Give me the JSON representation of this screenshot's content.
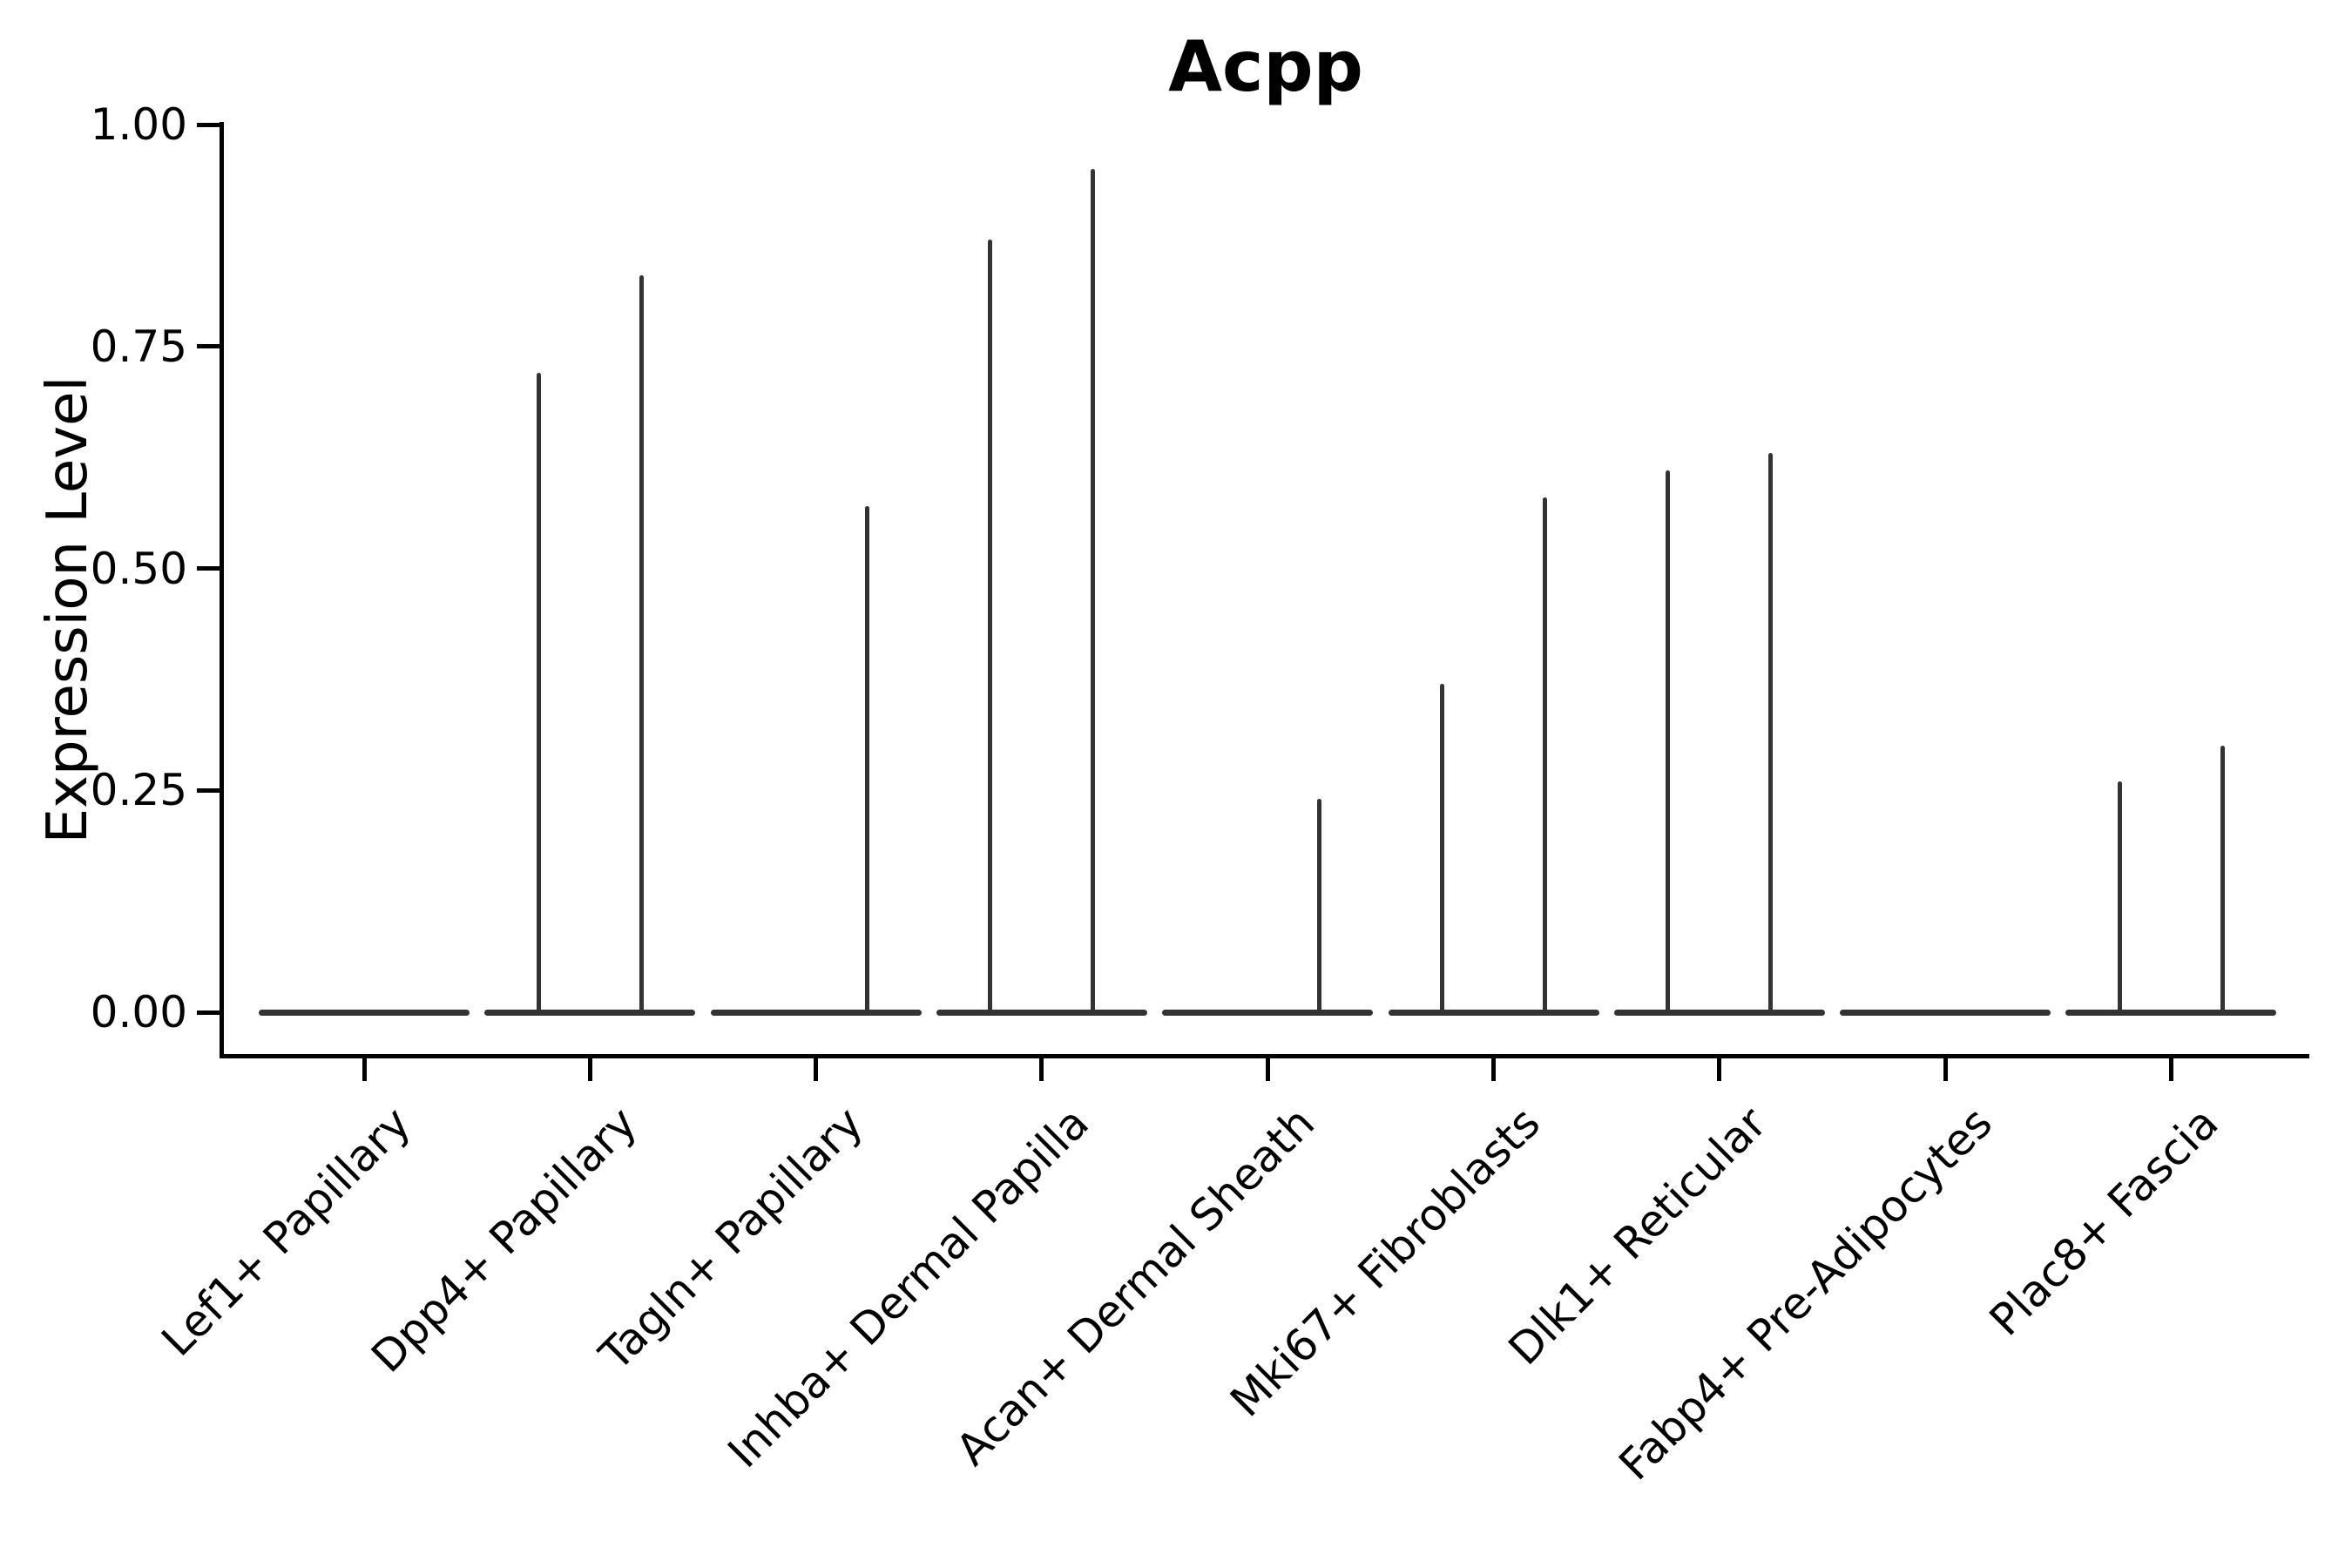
{
  "title": "Acpp",
  "y_axis": {
    "label": "Expression Level"
  },
  "chart_data": {
    "type": "violin",
    "title": "Acpp",
    "xlabel": "",
    "ylabel": "Expression Level",
    "ylim": [
      0,
      1
    ],
    "grid": false,
    "legend": false,
    "violin_color": "#333333",
    "axis_color": "#000000",
    "yticks": [
      {
        "value": 1.0,
        "label": "1.00"
      },
      {
        "value": 0.75,
        "label": "0.75"
      },
      {
        "value": 0.5,
        "label": "0.50"
      },
      {
        "value": 0.25,
        "label": "0.25"
      },
      {
        "value": 0.0,
        "label": "0.00"
      }
    ],
    "categories": [
      "Lef1+ Papillary",
      "Dpp4+ Papillary",
      "Tagln+ Papillary",
      "Inhba+ Dermal Papilla",
      "Acan+ Dermal Sheath",
      "Mki67+ Fibroblasts",
      "Dlk1+ Reticular",
      "Fabp4+ Pre-Adipocytes",
      "Plac8+ Fascia"
    ],
    "series": [
      {
        "category": "Lef1+ Papillary",
        "base_value": 0,
        "spikes": []
      },
      {
        "category": "Dpp4+ Papillary",
        "base_value": 0,
        "spikes": [
          {
            "slot": "left",
            "peak": 0.72
          },
          {
            "slot": "right",
            "peak": 0.83
          }
        ]
      },
      {
        "category": "Tagln+ Papillary",
        "base_value": 0,
        "spikes": [
          {
            "slot": "right",
            "peak": 0.57
          }
        ]
      },
      {
        "category": "Inhba+ Dermal Papilla",
        "base_value": 0,
        "spikes": [
          {
            "slot": "left",
            "peak": 0.87
          },
          {
            "slot": "right",
            "peak": 0.95
          }
        ]
      },
      {
        "category": "Acan+ Dermal Sheath",
        "base_value": 0,
        "spikes": [
          {
            "slot": "right",
            "peak": 0.24
          }
        ]
      },
      {
        "category": "Mki67+ Fibroblasts",
        "base_value": 0,
        "spikes": [
          {
            "slot": "left",
            "peak": 0.37
          },
          {
            "slot": "right",
            "peak": 0.58
          }
        ]
      },
      {
        "category": "Dlk1+ Reticular",
        "base_value": 0,
        "spikes": [
          {
            "slot": "left",
            "peak": 0.61
          },
          {
            "slot": "right",
            "peak": 0.63
          }
        ]
      },
      {
        "category": "Fabp4+ Pre-Adipocytes",
        "base_value": 0,
        "spikes": []
      },
      {
        "category": "Plac8+ Fascia",
        "base_value": 0,
        "spikes": [
          {
            "slot": "left",
            "peak": 0.26
          },
          {
            "slot": "right",
            "peak": 0.3
          }
        ]
      }
    ]
  }
}
